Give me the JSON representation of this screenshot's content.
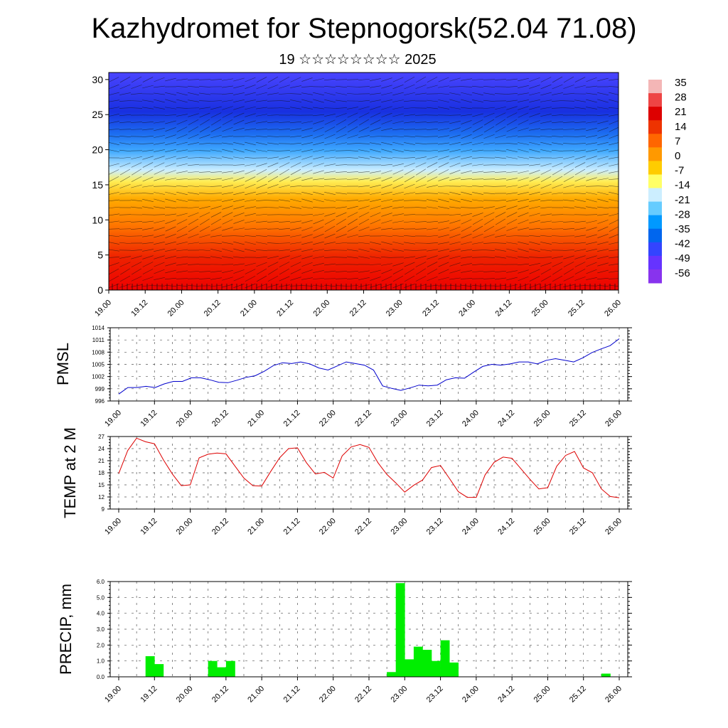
{
  "title": "Kazhydromet for Stepnogorsk(52.04 71.08)",
  "subtitle": "19 ☆☆☆☆☆☆☆☆ 2025",
  "time_ticks": [
    "19.00",
    "19.12",
    "20.00",
    "20.12",
    "21.00",
    "21.12",
    "22.00",
    "22.12",
    "23.00",
    "23.12",
    "24.00",
    "24.12",
    "25.00",
    "25.12",
    "26.00"
  ],
  "colors": {
    "pmsl_line": "#0000cc",
    "temp_line": "#dd0000",
    "precip_bar": "#00ee00"
  },
  "chart_data": [
    {
      "id": "cross_section",
      "type": "heatmap",
      "title": "",
      "xlabel": "",
      "ylabel": "",
      "ylim": [
        0,
        31
      ],
      "yticks": [
        0,
        5,
        10,
        15,
        20,
        25,
        30
      ],
      "colorbar": {
        "labels": [
          "35",
          "28",
          "21",
          "14",
          "7",
          "0",
          "-7",
          "-14",
          "-21",
          "-28",
          "-35",
          "-42",
          "-49",
          "-56"
        ],
        "palette": [
          "#f4b6b6",
          "#ee4444",
          "#dd0000",
          "#ee3300",
          "#ff6600",
          "#ff9900",
          "#ffcc00",
          "#ffff66",
          "#cceeff",
          "#66ccff",
          "#0099ff",
          "#0066ee",
          "#3344ff",
          "#6633ff",
          "#8833ee"
        ]
      },
      "overlay": "wind barbs"
    },
    {
      "id": "pmsl",
      "type": "line",
      "title": "",
      "xlabel": "",
      "ylabel": "PMSL",
      "ylim": [
        996,
        1014
      ],
      "yticks": [
        996,
        999,
        1002,
        1005,
        1008,
        1011,
        1014
      ],
      "series": [
        {
          "values": [
            997.7,
            999.3,
            999.3,
            999.6,
            999.3,
            1000.2,
            1000.8,
            1000.8,
            1001.7,
            1001.7,
            1001.2,
            1000.6,
            1000.5,
            1001.1,
            1001.8,
            1002.2,
            1003.3,
            1004.7,
            1005.4,
            1005.2,
            1005.6,
            1005.1,
            1004.1,
            1003.6,
            1004.6,
            1005.6,
            1005.2,
            1004.8,
            1003.6,
            999.7,
            999.1,
            998.6,
            999.2,
            999.9,
            999.7,
            999.9,
            1001.2,
            1001.7,
            1001.6,
            1003.1,
            1004.5,
            1005.0,
            1004.8,
            1005.1,
            1005.6,
            1005.6,
            1005.1,
            1006.0,
            1006.4,
            1006.0,
            1005.6,
            1006.6,
            1007.9,
            1008.8,
            1009.6,
            1011.3
          ]
        }
      ]
    },
    {
      "id": "temp2m",
      "type": "line",
      "title": "",
      "xlabel": "",
      "ylabel": "TEMP at 2 M",
      "ylim": [
        9,
        27
      ],
      "yticks": [
        9,
        12,
        15,
        18,
        21,
        24,
        27
      ],
      "series": [
        {
          "values": [
            17.8,
            23.5,
            26.6,
            25.7,
            25.2,
            21.2,
            17.7,
            14.8,
            15.0,
            21.7,
            22.6,
            22.9,
            22.7,
            19.7,
            16.7,
            14.8,
            14.7,
            18.3,
            21.7,
            24.0,
            24.2,
            20.5,
            17.7,
            18.1,
            16.7,
            22.2,
            24.4,
            25.0,
            24.3,
            20.5,
            17.6,
            15.5,
            13.2,
            14.9,
            16.2,
            19.3,
            19.8,
            16.6,
            13.3,
            11.9,
            11.9,
            17.5,
            20.6,
            21.9,
            21.6,
            19.0,
            16.4,
            14.0,
            14.3,
            19.6,
            22.3,
            23.3,
            19.2,
            18.0,
            14.0,
            12.1,
            11.8
          ]
        }
      ]
    },
    {
      "id": "precip",
      "type": "bar",
      "title": "",
      "xlabel": "",
      "ylabel": "PRECIP, mm",
      "ylim": [
        0,
        6
      ],
      "yticks": [
        "0.0",
        "1.0",
        "2.0",
        "3.0",
        "4.0",
        "5.0",
        "6.0"
      ],
      "values": [
        0,
        0,
        0,
        1.3,
        0.8,
        0,
        0,
        0,
        0,
        0,
        1.0,
        0.6,
        1.0,
        0,
        0,
        0,
        0,
        0,
        0,
        0,
        0,
        0,
        0,
        0,
        0,
        0,
        0,
        0,
        0,
        0,
        0.3,
        5.9,
        1.1,
        1.9,
        1.7,
        1.0,
        2.3,
        0.9,
        0,
        0,
        0,
        0,
        0,
        0,
        0,
        0,
        0,
        0,
        0,
        0,
        0,
        0,
        0,
        0,
        0.2,
        0,
        0,
        0
      ]
    }
  ]
}
